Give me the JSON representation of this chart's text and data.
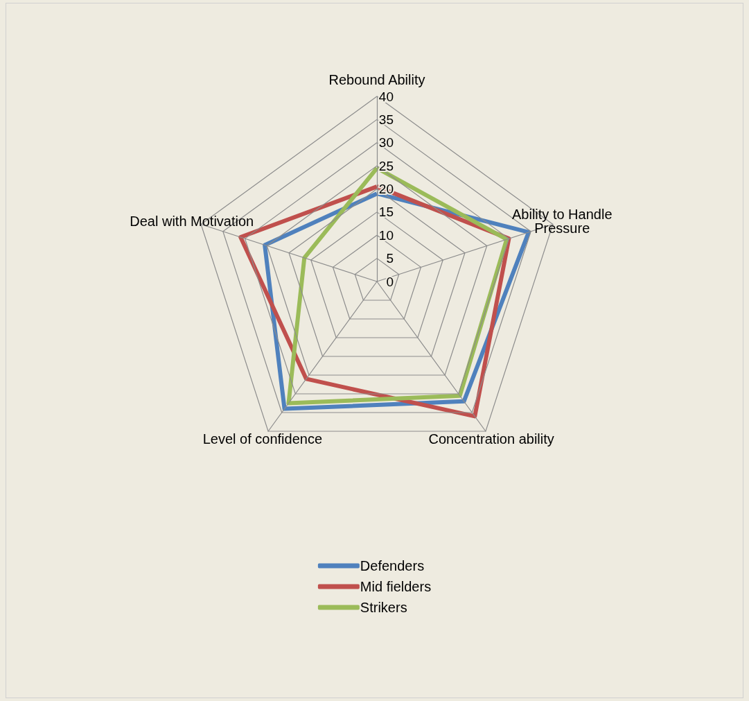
{
  "chart_data": {
    "type": "radar",
    "categories": [
      "Rebound Ability",
      "Ability to Handle Pressure",
      "Concentration ability",
      "Level of confidence",
      "Deal with Motivation"
    ],
    "series": [
      {
        "name": "Defenders",
        "color": "#4f81bd",
        "values": [
          19,
          34.5,
          32,
          34,
          25.5
        ]
      },
      {
        "name": "Mid fielders",
        "color": "#c0504d",
        "values": [
          20.5,
          30,
          36,
          26,
          31
        ]
      },
      {
        "name": "Strikers",
        "color": "#9bbb59",
        "values": [
          24.5,
          29.5,
          30.5,
          32.5,
          16.5
        ]
      }
    ],
    "ylim": [
      0,
      40
    ],
    "yticks": [
      0,
      5,
      10,
      15,
      20,
      25,
      30,
      35,
      40
    ],
    "legend": "bottom",
    "marker": "none",
    "line_style": "solid"
  }
}
